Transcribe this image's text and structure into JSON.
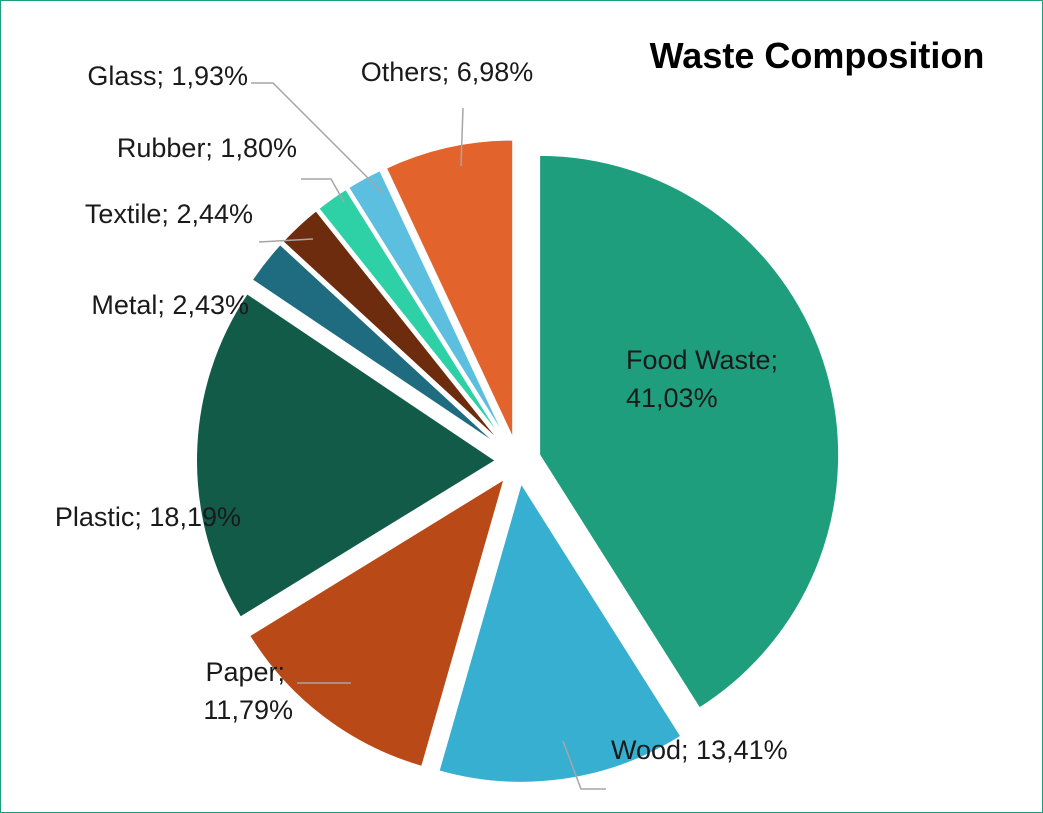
{
  "chart_data": {
    "type": "pie",
    "title": "Waste Composition",
    "slices": [
      {
        "category": "Food Waste",
        "value": 41.03,
        "label": "Food Waste; 41,03%",
        "color": "#1f9e7d"
      },
      {
        "category": "Wood",
        "value": 13.41,
        "label": "Wood; 13,41%",
        "color": "#37afd0"
      },
      {
        "category": "Paper",
        "value": 11.79,
        "label": "Paper; 11,79%",
        "color": "#b94a18"
      },
      {
        "category": "Plastic",
        "value": 18.19,
        "label": "Plastic; 18,19%",
        "color": "#125b48"
      },
      {
        "category": "Metal",
        "value": 2.43,
        "label": "Metal; 2,43%",
        "color": "#1f6b80"
      },
      {
        "category": "Textile",
        "value": 2.44,
        "label": "Textile; 2,44%",
        "color": "#6e2c0e"
      },
      {
        "category": "Rubber",
        "value": 1.8,
        "label": "Rubber; 1,80%",
        "color": "#2ed1a6"
      },
      {
        "category": "Glass",
        "value": 1.93,
        "label": "Glass; 1,93%",
        "color": "#5cbfdf"
      },
      {
        "category": "Others",
        "value": 6.98,
        "label": "Others; 6,98%",
        "color": "#e2642c"
      }
    ],
    "exploded": true,
    "legend": "none",
    "start_angle": "12 o'clock, clockwise"
  }
}
